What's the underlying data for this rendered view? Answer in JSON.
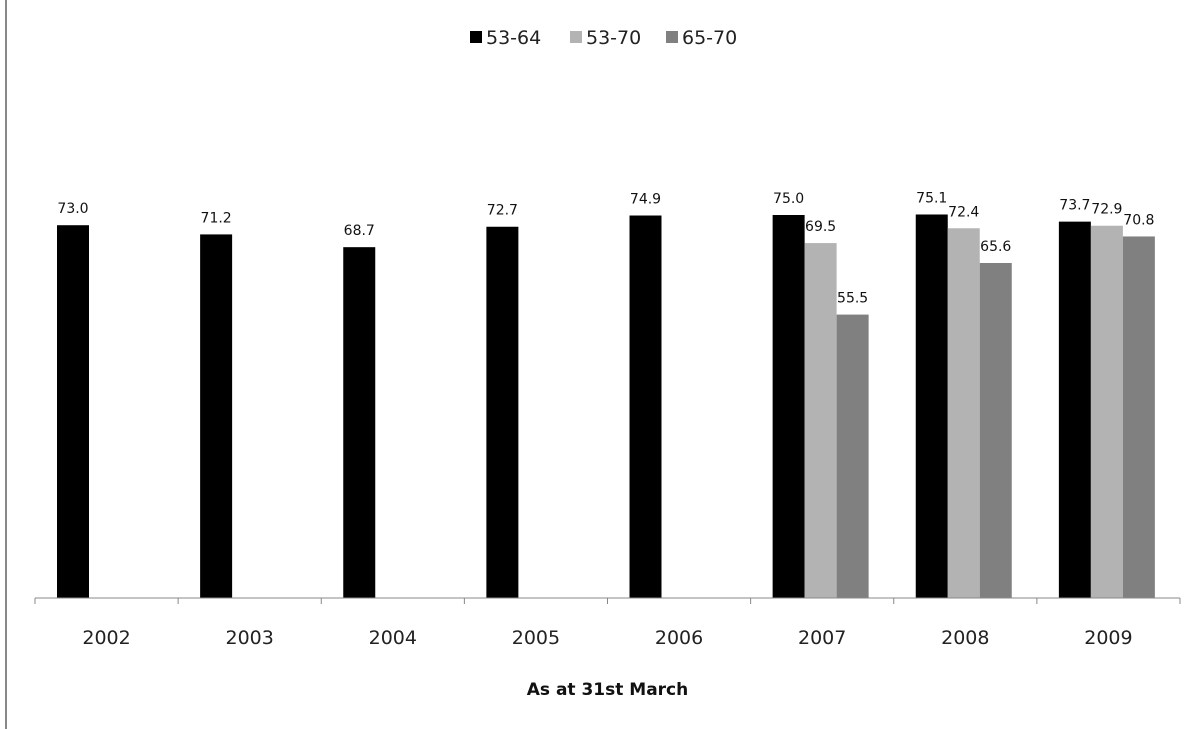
{
  "chart_data": {
    "type": "bar",
    "categories": [
      "2002",
      "2003",
      "2004",
      "2005",
      "2006",
      "2007",
      "2008",
      "2009"
    ],
    "series": [
      {
        "name": "53-64",
        "color": "#000000",
        "values": [
          73.0,
          71.2,
          68.7,
          72.7,
          74.9,
          75.0,
          75.1,
          73.7
        ]
      },
      {
        "name": "53-70",
        "color": "#b3b3b3",
        "values": [
          null,
          null,
          null,
          null,
          null,
          69.5,
          72.4,
          72.9
        ]
      },
      {
        "name": "65-70",
        "color": "#808080",
        "values": [
          null,
          null,
          null,
          null,
          null,
          55.5,
          65.6,
          70.8
        ]
      }
    ],
    "title": "",
    "xlabel": "As at 31st March",
    "ylabel": "",
    "ylim": [
      0,
      75
    ],
    "grid": false,
    "legend_position": "top-center",
    "data_labels": true
  }
}
